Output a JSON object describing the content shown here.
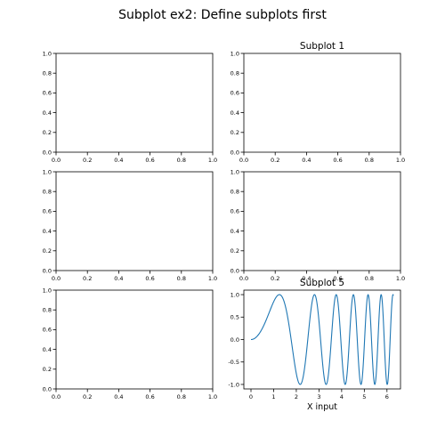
{
  "figure": {
    "suptitle": "Subplot ex2: Define subplots first"
  },
  "chart_data": [
    {
      "type": "line",
      "title": "",
      "xlabel": "",
      "ylabel": "",
      "xlim": [
        0,
        1
      ],
      "ylim": [
        0,
        1
      ],
      "xticks": [
        "0.0",
        "0.2",
        "0.4",
        "0.6",
        "0.8",
        "1.0"
      ],
      "yticks": [
        "0.0",
        "0.2",
        "0.4",
        "0.6",
        "0.8",
        "1.0"
      ],
      "series": []
    },
    {
      "type": "line",
      "title": "Subplot 1",
      "xlabel": "",
      "ylabel": "",
      "xlim": [
        0,
        1
      ],
      "ylim": [
        0,
        1
      ],
      "xticks": [
        "0.0",
        "0.2",
        "0.4",
        "0.6",
        "0.8",
        "1.0"
      ],
      "yticks": [
        "0.0",
        "0.2",
        "0.4",
        "0.6",
        "0.8",
        "1.0"
      ],
      "series": []
    },
    {
      "type": "line",
      "title": "",
      "xlabel": "",
      "ylabel": "",
      "xlim": [
        0,
        1
      ],
      "ylim": [
        0,
        1
      ],
      "xticks": [
        "0.0",
        "0.2",
        "0.4",
        "0.6",
        "0.8",
        "1.0"
      ],
      "yticks": [
        "0.0",
        "0.2",
        "0.4",
        "0.6",
        "0.8",
        "1.0"
      ],
      "series": []
    },
    {
      "type": "line",
      "title": "",
      "xlabel": "",
      "ylabel": "",
      "xlim": [
        0,
        1
      ],
      "ylim": [
        0,
        1
      ],
      "xticks": [
        "0.0",
        "0.2",
        "0.4",
        "0.6",
        "0.8",
        "1.0"
      ],
      "yticks": [
        "0.0",
        "0.2",
        "0.4",
        "0.6",
        "0.8",
        "1.0"
      ],
      "series": []
    },
    {
      "type": "line",
      "title": "",
      "xlabel": "",
      "ylabel": "",
      "xlim": [
        0,
        1
      ],
      "ylim": [
        0,
        1
      ],
      "xticks": [
        "0.0",
        "0.2",
        "0.4",
        "0.6",
        "0.8",
        "1.0"
      ],
      "yticks": [
        "0.0",
        "0.2",
        "0.4",
        "0.6",
        "0.8",
        "1.0"
      ],
      "series": []
    },
    {
      "type": "line",
      "title": "Subplot 5",
      "xlabel": "X input",
      "ylabel": "",
      "xlim": [
        -0.314,
        6.597
      ],
      "ylim": [
        -1.1,
        1.1
      ],
      "xticks": [
        "0",
        "1",
        "2",
        "3",
        "4",
        "5",
        "6"
      ],
      "yticks": [
        "-1.0",
        "-0.5",
        "0.0",
        "0.5",
        "1.0"
      ],
      "series": [
        {
          "function": "sin(x^2)",
          "x_range": [
            0,
            6.283
          ],
          "color": "#1f77b4"
        }
      ]
    }
  ]
}
